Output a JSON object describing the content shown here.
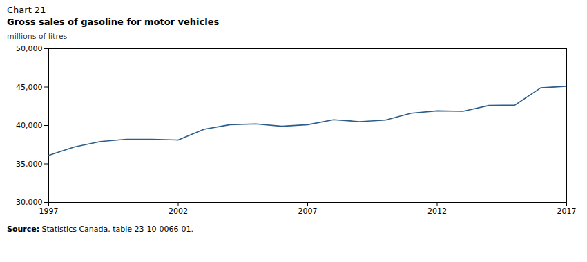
{
  "chart_data": {
    "type": "line",
    "title": "Chart 21",
    "subtitle": "Gross sales of gasoline for motor vehicles",
    "ylabel": "millions of litres",
    "caption": "Source: Statistics Canada, table 23-10-0066-01.",
    "color": "#2B5C8A",
    "x": [
      1997,
      1998,
      1999,
      2000,
      2001,
      2002,
      2003,
      2004,
      2005,
      2006,
      2007,
      2008,
      2009,
      2010,
      2011,
      2012,
      2013,
      2014,
      2015,
      2016,
      2017
    ],
    "values": [
      36100,
      37200,
      37900,
      38200,
      38200,
      38100,
      39500,
      40100,
      40200,
      39900,
      40100,
      40750,
      40500,
      40700,
      41600,
      41900,
      41850,
      42600,
      42650,
      44900,
      45100
    ],
    "xlim": [
      1997,
      2017
    ],
    "xticks": [
      1997,
      2002,
      2007,
      2012,
      2017
    ],
    "ylim": [
      30000,
      50000
    ],
    "yticks": [
      {
        "value": 30000,
        "label": "30,000"
      },
      {
        "value": 35000,
        "label": "35,000"
      },
      {
        "value": 40000,
        "label": "40,000"
      },
      {
        "value": 45000,
        "label": "45,000"
      },
      {
        "value": 50000,
        "label": "50,000"
      }
    ],
    "grid": false
  }
}
